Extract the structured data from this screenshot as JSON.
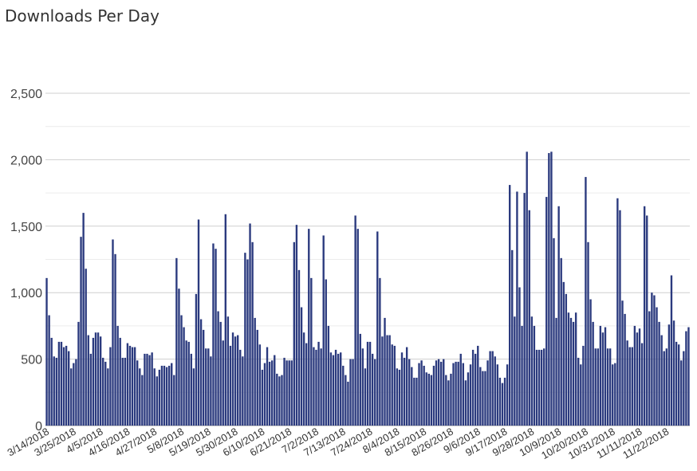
{
  "chart_data": {
    "type": "bar",
    "title": "Downloads Per Day",
    "xlabel": "",
    "ylabel": "",
    "ylim": [
      0,
      2500
    ],
    "yticks": [
      0,
      500,
      1000,
      1500,
      2000,
      2500
    ],
    "ytick_labels": [
      "0",
      "500",
      "1,000",
      "1,500",
      "2,000",
      "2,500"
    ],
    "grid": true,
    "bar_color": "#2b3a7e",
    "x_start": "3/14/2018",
    "xtick_labels": [
      "3/14/2018",
      "3/25/2018",
      "4/5/2018",
      "4/16/2018",
      "4/27/2018",
      "5/8/2018",
      "5/19/2018",
      "5/30/2018",
      "6/10/2018",
      "6/21/2018",
      "7/2/2018",
      "7/13/2018",
      "7/24/2018",
      "8/4/2018",
      "8/15/2018",
      "8/26/2018",
      "9/6/2018",
      "9/17/2018",
      "9/28/2018",
      "10/9/2018",
      "10/20/2018",
      "10/31/2018",
      "11/11/2018",
      "11/22/2018"
    ],
    "values": [
      1110,
      830,
      660,
      520,
      510,
      630,
      630,
      590,
      600,
      560,
      430,
      470,
      500,
      780,
      1420,
      1600,
      1180,
      680,
      540,
      660,
      700,
      700,
      670,
      510,
      480,
      430,
      590,
      1400,
      1290,
      750,
      660,
      510,
      510,
      620,
      600,
      590,
      590,
      490,
      430,
      380,
      540,
      540,
      530,
      550,
      430,
      370,
      420,
      450,
      450,
      440,
      450,
      470,
      380,
      1260,
      1030,
      830,
      740,
      640,
      630,
      540,
      430,
      990,
      1550,
      800,
      720,
      580,
      580,
      520,
      1370,
      1330,
      860,
      780,
      640,
      1590,
      820,
      600,
      700,
      670,
      680,
      570,
      520,
      1300,
      1250,
      1520,
      1380,
      810,
      720,
      610,
      420,
      470,
      590,
      480,
      490,
      530,
      390,
      370,
      380,
      510,
      490,
      490,
      490,
      1380,
      1510,
      1170,
      890,
      700,
      620,
      1480,
      1110,
      590,
      570,
      630,
      580,
      1430,
      1100,
      750,
      550,
      530,
      570,
      540,
      550,
      450,
      380,
      330,
      500,
      500,
      1580,
      1480,
      690,
      580,
      430,
      630,
      630,
      540,
      500,
      1460,
      1110,
      670,
      810,
      680,
      680,
      610,
      600,
      430,
      420,
      550,
      510,
      590,
      500,
      440,
      360,
      360,
      470,
      490,
      450,
      400,
      390,
      380,
      450,
      490,
      500,
      480,
      500,
      380,
      340,
      390,
      470,
      480,
      480,
      540,
      470,
      340,
      400,
      460,
      570,
      540,
      600,
      440,
      410,
      410,
      490,
      560,
      560,
      520,
      460,
      360,
      320,
      360,
      460,
      1810,
      1320,
      820,
      1760,
      1040,
      750,
      1750,
      2060,
      1620,
      820,
      750,
      570,
      570,
      570,
      580,
      1720,
      2050,
      2060,
      1410,
      810,
      1650,
      1260,
      1080,
      990,
      850,
      810,
      780,
      850,
      510,
      460,
      600,
      1870,
      1380,
      950,
      780,
      580,
      580,
      750,
      700,
      740,
      580,
      580,
      460,
      470,
      1710,
      1620,
      940,
      840,
      640,
      590,
      590,
      750,
      700,
      730,
      620,
      1650,
      1580,
      860,
      1000,
      980,
      890,
      780,
      680,
      560,
      580,
      760,
      1130,
      790,
      630,
      610,
      490,
      560,
      710,
      740
    ]
  }
}
